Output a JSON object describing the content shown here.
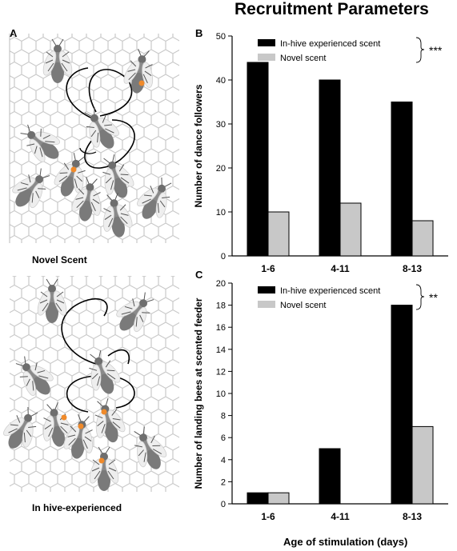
{
  "figure": {
    "title": "Recruitment Parameters",
    "panel_letters": {
      "a": "A",
      "b": "B",
      "c": "C"
    },
    "illustrations": {
      "top_caption": "Novel Scent",
      "bottom_caption": "In hive-experienced"
    },
    "shared_xlabel": "Age of stimulation (days)"
  },
  "chart_data": [
    {
      "type": "bar",
      "panel": "B",
      "categories": [
        "1-6",
        "4-11",
        "8-13"
      ],
      "series": [
        {
          "name": "In-hive experienced scent",
          "color": "#000000",
          "values": [
            44,
            40,
            35
          ]
        },
        {
          "name": "Novel scent",
          "color": "#c8c8c8",
          "values": [
            10,
            12,
            8
          ]
        }
      ],
      "ylabel": "Number of dance followers",
      "ylim": [
        0,
        50
      ],
      "yticks": [
        0,
        10,
        20,
        30,
        40,
        50
      ],
      "significance": "***",
      "legend_position": "top"
    },
    {
      "type": "bar",
      "panel": "C",
      "categories": [
        "1-6",
        "4-11",
        "8-13"
      ],
      "series": [
        {
          "name": "In-hive experienced scent",
          "color": "#000000",
          "values": [
            1,
            5,
            18
          ]
        },
        {
          "name": "Novel scent",
          "color": "#c8c8c8",
          "values": [
            1,
            0,
            7
          ]
        }
      ],
      "ylabel": "Number of landing bees at scented feeder",
      "ylim": [
        0,
        20
      ],
      "yticks": [
        0,
        2,
        4,
        6,
        8,
        10,
        12,
        14,
        16,
        18,
        20
      ],
      "significance": "**",
      "legend_position": "top"
    }
  ]
}
